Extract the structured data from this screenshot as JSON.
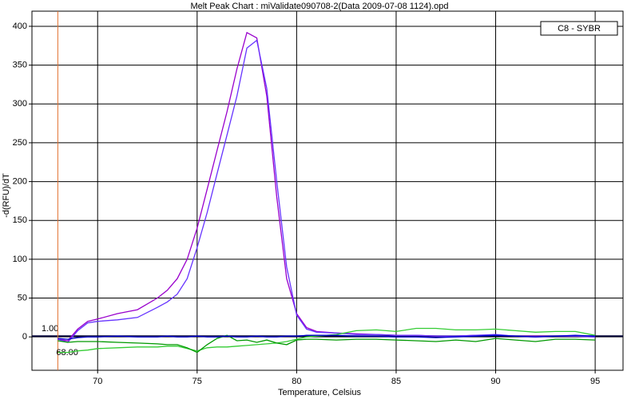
{
  "chart_data": {
    "type": "line",
    "title": "Melt Peak Chart : miValidate090708-2(Data 2009-07-08 1124).opd",
    "x_label": "Temperature, Celsius",
    "y_label": "-d(RFU)/dT",
    "legend_label": "C8 - SYBR",
    "x": [
      68,
      68.5,
      69,
      69.5,
      70,
      71,
      72,
      73,
      73.5,
      74,
      74.5,
      75,
      75.5,
      76,
      76.5,
      77,
      77.5,
      78,
      78.5,
      79,
      79.5,
      80,
      80.5,
      81,
      82,
      83,
      84,
      85,
      86,
      87,
      88,
      89,
      90,
      91,
      92,
      93,
      94,
      95
    ],
    "series": [
      {
        "color": "#9900cc",
        "values": [
          -3,
          -5,
          10,
          20,
          23,
          30,
          35,
          50,
          60,
          75,
          100,
          140,
          190,
          240,
          290,
          345,
          392,
          385,
          310,
          180,
          75,
          30,
          12,
          7,
          5,
          4,
          3,
          2,
          2,
          1,
          1,
          2,
          2,
          1,
          1,
          1,
          1,
          0
        ]
      },
      {
        "color": "#6633ff",
        "values": [
          -3,
          -7,
          8,
          18,
          20,
          22,
          25,
          38,
          45,
          55,
          75,
          115,
          160,
          210,
          260,
          310,
          372,
          382,
          320,
          200,
          90,
          28,
          10,
          6,
          5,
          3,
          3,
          2,
          2,
          1,
          1,
          2,
          3,
          1,
          0,
          1,
          1,
          0
        ]
      },
      {
        "color": "#33cc33",
        "values": [
          -20,
          -20,
          -18,
          -17,
          -15,
          -14,
          -13,
          -13,
          -12,
          -12,
          -15,
          -18,
          -14,
          -13,
          -13,
          -12,
          -11,
          -10,
          -9,
          -8,
          -6,
          -3,
          0,
          1,
          3,
          8,
          9,
          7,
          11,
          11,
          9,
          9,
          10,
          8,
          6,
          7,
          7,
          2
        ]
      },
      {
        "color": "#009900",
        "values": [
          -5,
          -7,
          -6,
          -6,
          -6,
          -7,
          -8,
          -9,
          -10,
          -10,
          -14,
          -20,
          -10,
          -2,
          2,
          -5,
          -4,
          -7,
          -4,
          -8,
          -10,
          -4,
          -3,
          -3,
          -4,
          -3,
          -3,
          -4,
          -5,
          -6,
          -4,
          -6,
          -2,
          -4,
          -6,
          -3,
          -3,
          -4
        ]
      },
      {
        "color": "#0000cc",
        "values": [
          -2,
          -3,
          -1,
          0,
          0,
          1,
          0,
          0,
          1,
          0,
          0,
          1,
          0,
          0,
          1,
          0,
          0,
          1,
          0,
          0,
          1,
          1,
          2,
          2,
          2,
          1,
          1,
          0,
          0,
          -1,
          0,
          1,
          2,
          1,
          0,
          1,
          2,
          1
        ]
      }
    ],
    "xlim": [
      66.7,
      96.4
    ],
    "ylim": [
      -43,
      419.5
    ],
    "xticks": [
      70,
      75,
      80,
      85,
      90,
      95
    ],
    "yticks": [
      0,
      50,
      100,
      150,
      200,
      250,
      300,
      350,
      400
    ],
    "grid": true,
    "threshold": {
      "value": 1,
      "label": "1.00"
    },
    "vline": {
      "value": 68,
      "label": "68.00"
    }
  }
}
